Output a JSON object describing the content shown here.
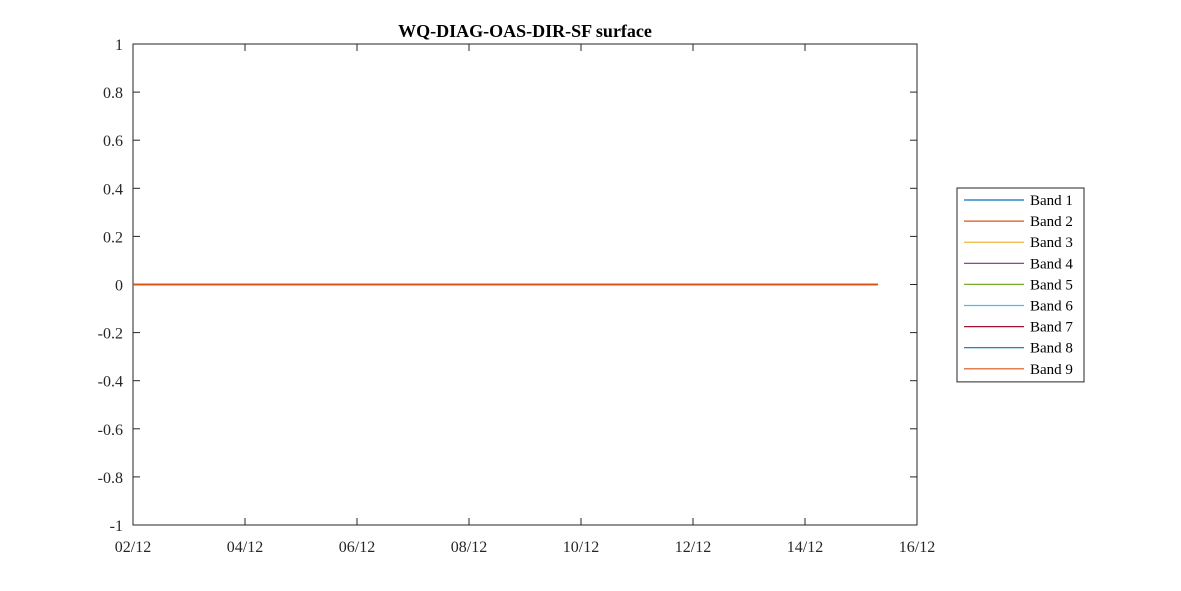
{
  "chart_data": {
    "type": "line",
    "title": "WQ-DIAG-OAS-DIR-SF surface",
    "xlabel": "",
    "ylabel": "",
    "x_ticks": [
      "02/12",
      "04/12",
      "06/12",
      "08/12",
      "10/12",
      "12/12",
      "14/12",
      "16/12"
    ],
    "x_tick_values": [
      2,
      4,
      6,
      8,
      10,
      12,
      14,
      16
    ],
    "xlim": [
      2,
      16
    ],
    "x_range": [
      2,
      15.3
    ],
    "y_ticks": [
      "1",
      "0.8",
      "0.6",
      "0.4",
      "0.2",
      "0",
      "-0.2",
      "-0.4",
      "-0.6",
      "-0.8",
      "-1"
    ],
    "ylim": [
      -1,
      1
    ],
    "grid": false,
    "legend_position": "right",
    "series": [
      {
        "name": "Band 1",
        "color": "#0072bd",
        "values": [
          0,
          0
        ]
      },
      {
        "name": "Band 2",
        "color": "#d95319",
        "values": [
          0,
          0
        ]
      },
      {
        "name": "Band 3",
        "color": "#edb120",
        "values": [
          0,
          0
        ]
      },
      {
        "name": "Band 4",
        "color": "#7e2f8e",
        "values": [
          0,
          0
        ]
      },
      {
        "name": "Band 5",
        "color": "#77ac30",
        "values": [
          0,
          0
        ]
      },
      {
        "name": "Band 6",
        "color": "#4dbeee",
        "values": [
          0,
          0
        ]
      },
      {
        "name": "Band 7",
        "color": "#a2142f",
        "values": [
          0,
          0
        ]
      },
      {
        "name": "Band 8",
        "color": "#0072bd",
        "values": [
          0,
          0
        ]
      },
      {
        "name": "Band 9",
        "color": "#d95319",
        "values": [
          0,
          0
        ]
      }
    ]
  }
}
